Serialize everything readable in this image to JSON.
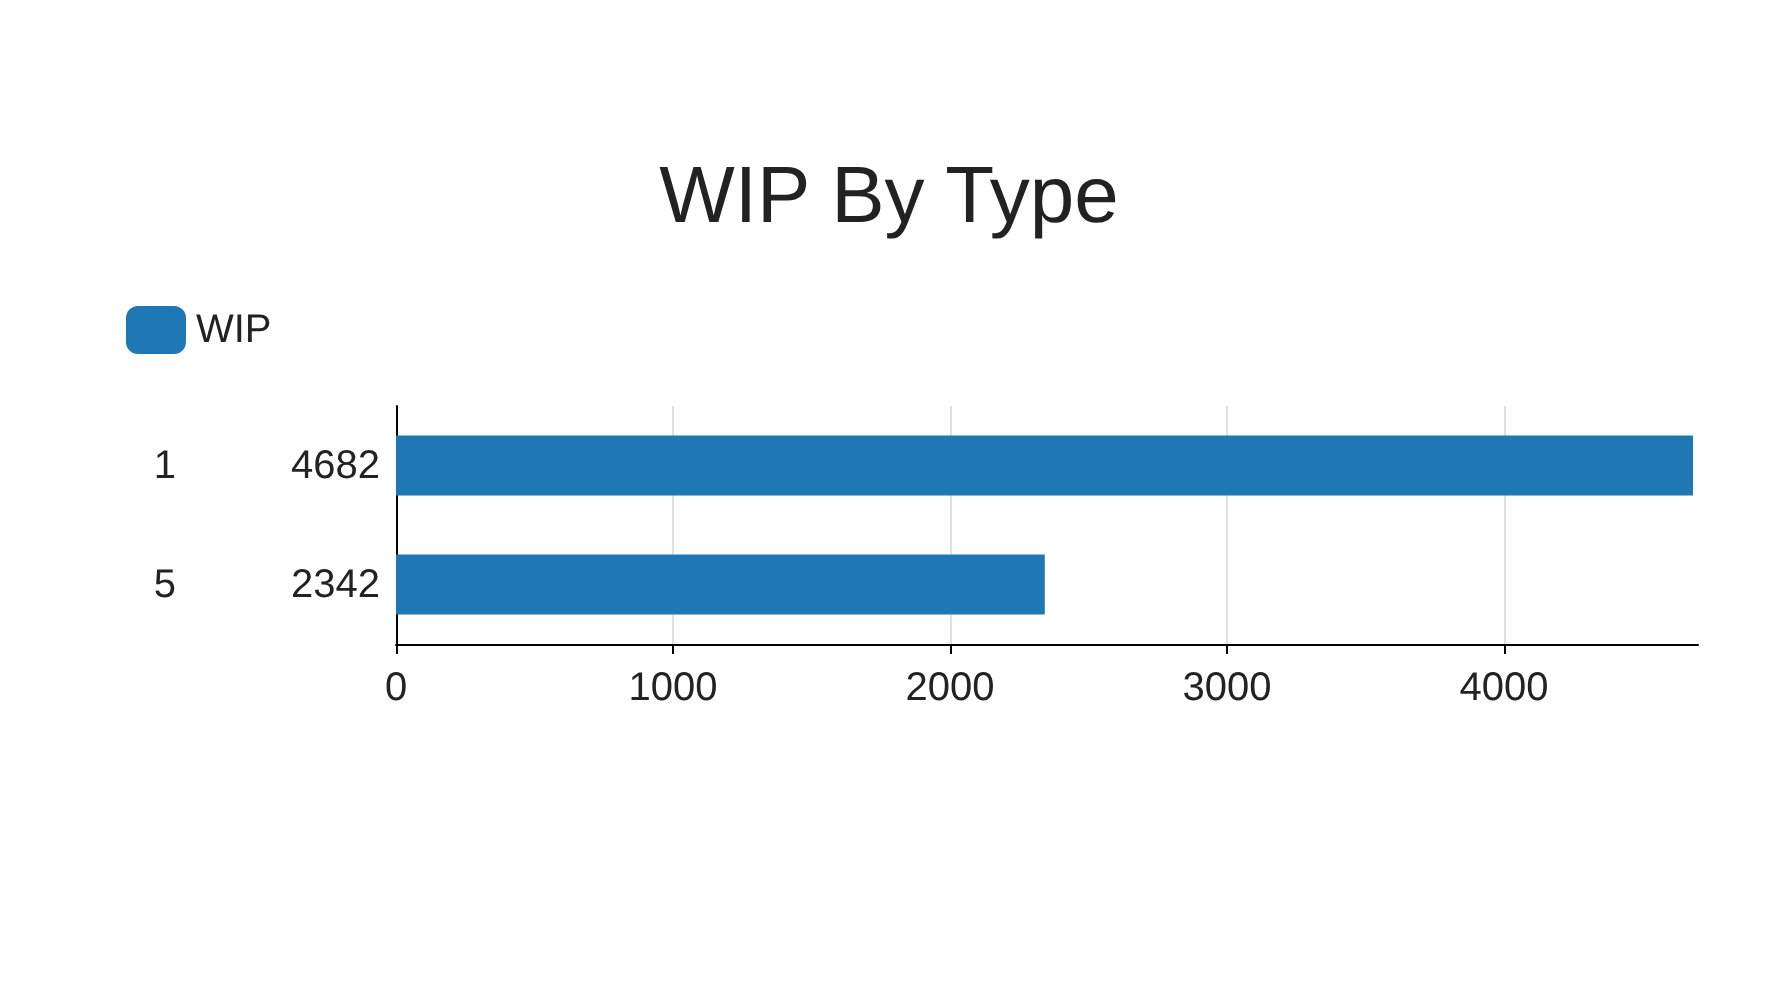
{
  "chart_data": {
    "type": "bar",
    "orientation": "horizontal",
    "title": "WIP By Type",
    "categories": [
      "1",
      "5"
    ],
    "series": [
      {
        "name": "WIP",
        "color": "#1f77b4",
        "values": [
          4682,
          2342
        ]
      }
    ],
    "xlim": [
      0,
      4700
    ],
    "xticks": [
      0,
      1000,
      2000,
      3000,
      4000
    ],
    "grid": "x",
    "legend": "top left",
    "data_labels": true
  }
}
